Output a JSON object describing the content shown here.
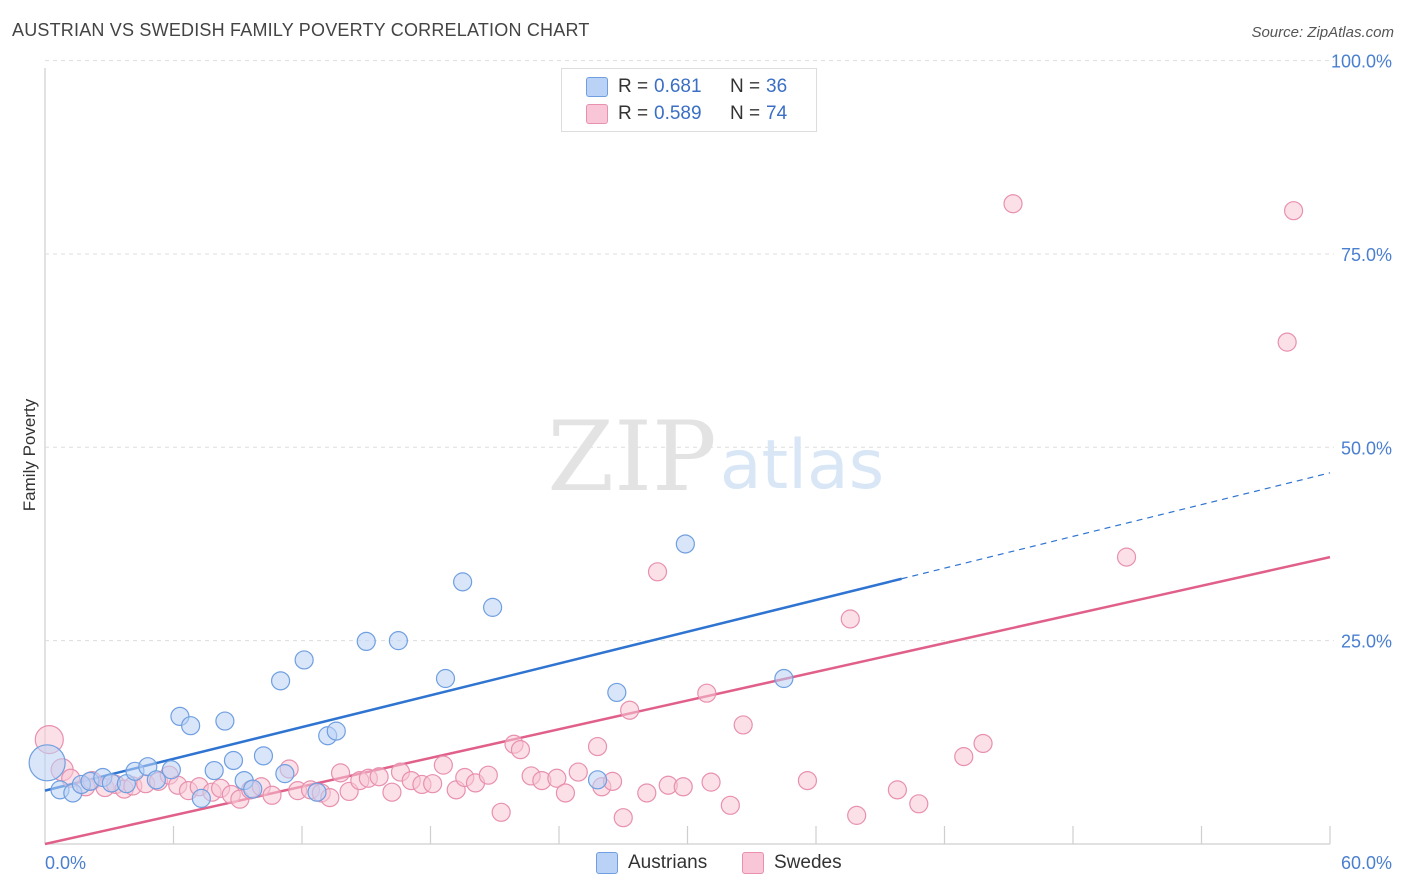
{
  "title": "AUSTRIAN VS SWEDISH FAMILY POVERTY CORRELATION CHART",
  "source": "Source: ZipAtlas.com",
  "watermark": {
    "zip": "ZIP",
    "atlas": "atlas"
  },
  "colors": {
    "austrians_fill": "#b9d2f5",
    "austrians_stroke": "#6f9fe0",
    "austrians_line": "#2f74d0",
    "swedes_fill": "#f8c6d6",
    "swedes_stroke": "#e890ae",
    "swedes_line": "#e0608a",
    "tick_label": "#4a7fd0",
    "grid": "#dddddd"
  },
  "legend_top": [
    {
      "r_label": "R =",
      "r_value": "0.681",
      "n_label": "N =",
      "n_value": "36"
    },
    {
      "r_label": "R =",
      "r_value": "0.589",
      "n_label": "N =",
      "n_value": "74"
    }
  ],
  "legend_bottom": [
    "Austrians",
    "Swedes"
  ],
  "chart_data": {
    "type": "scatter",
    "title": "AUSTRIAN VS SWEDISH FAMILY POVERTY CORRELATION CHART",
    "xlabel": "",
    "ylabel": "Family Poverty",
    "xlim": [
      0,
      60
    ],
    "ylim": [
      -1.3,
      97.5
    ],
    "x_tick_labels": [
      "0.0%",
      "60.0%"
    ],
    "y_ticks": [
      25,
      50,
      75,
      100
    ],
    "y_tick_labels": [
      "25.0%",
      "50.0%",
      "75.0%",
      "100.0%"
    ],
    "grid": true,
    "legend_position": "top-center",
    "series": [
      {
        "name": "Austrians",
        "r": 0.681,
        "n": 36,
        "trend": {
          "x": [
            0,
            40
          ],
          "y": [
            5.6,
            33.0
          ],
          "dashed_to": [
            60,
            46.7
          ]
        },
        "points": [
          [
            0.1,
            9.2,
            18
          ],
          [
            0.7,
            5.7,
            9
          ],
          [
            1.3,
            5.3,
            9
          ],
          [
            1.7,
            6.4,
            9
          ],
          [
            2.1,
            6.8,
            9
          ],
          [
            2.7,
            7.3,
            9
          ],
          [
            3.1,
            6.6,
            9
          ],
          [
            3.8,
            6.5,
            9
          ],
          [
            4.2,
            8.1,
            9
          ],
          [
            4.8,
            8.7,
            9
          ],
          [
            5.2,
            7.0,
            9
          ],
          [
            5.9,
            8.3,
            9
          ],
          [
            6.3,
            15.2,
            9
          ],
          [
            6.8,
            14.0,
            9
          ],
          [
            7.3,
            4.6,
            9
          ],
          [
            7.9,
            8.2,
            9
          ],
          [
            8.4,
            14.6,
            9
          ],
          [
            8.8,
            9.5,
            9
          ],
          [
            9.3,
            6.9,
            9
          ],
          [
            9.7,
            5.8,
            9
          ],
          [
            10.2,
            10.1,
            9
          ],
          [
            11.0,
            19.8,
            9
          ],
          [
            11.2,
            7.8,
            9
          ],
          [
            12.1,
            22.5,
            9
          ],
          [
            12.7,
            5.4,
            9
          ],
          [
            13.2,
            12.7,
            9
          ],
          [
            13.6,
            13.3,
            9
          ],
          [
            15.0,
            24.9,
            9
          ],
          [
            16.5,
            25.0,
            9
          ],
          [
            18.7,
            20.1,
            9
          ],
          [
            19.5,
            32.6,
            9
          ],
          [
            20.9,
            29.3,
            9
          ],
          [
            25.8,
            7.0,
            9
          ],
          [
            26.7,
            18.3,
            9
          ],
          [
            29.9,
            37.5,
            9
          ],
          [
            34.5,
            20.1,
            9
          ]
        ]
      },
      {
        "name": "Swedes",
        "r": 0.589,
        "n": 74,
        "trend": {
          "x": [
            0,
            60
          ],
          "y": [
            -1.3,
            35.8
          ]
        },
        "points": [
          [
            0.2,
            12.2,
            14
          ],
          [
            0.8,
            8.3,
            11
          ],
          [
            1.2,
            7.2,
            9
          ],
          [
            1.9,
            6.1,
            9
          ],
          [
            2.2,
            6.9,
            9
          ],
          [
            2.8,
            6.0,
            9
          ],
          [
            3.3,
            6.4,
            9
          ],
          [
            3.7,
            5.8,
            9
          ],
          [
            4.1,
            6.2,
            9
          ],
          [
            4.7,
            6.5,
            9
          ],
          [
            5.3,
            6.8,
            9
          ],
          [
            5.8,
            7.6,
            9
          ],
          [
            6.2,
            6.3,
            9
          ],
          [
            6.7,
            5.6,
            9
          ],
          [
            7.2,
            6.1,
            9
          ],
          [
            7.8,
            5.4,
            9
          ],
          [
            8.2,
            5.9,
            9
          ],
          [
            8.7,
            5.1,
            9
          ],
          [
            9.1,
            4.5,
            9
          ],
          [
            9.6,
            5.7,
            9
          ],
          [
            10.1,
            6.1,
            9
          ],
          [
            10.6,
            5.0,
            9
          ],
          [
            11.4,
            8.4,
            9
          ],
          [
            11.8,
            5.6,
            9
          ],
          [
            12.4,
            5.7,
            9
          ],
          [
            12.9,
            5.3,
            9
          ],
          [
            13.3,
            4.7,
            9
          ],
          [
            13.8,
            7.9,
            9
          ],
          [
            14.2,
            5.5,
            9
          ],
          [
            14.7,
            6.9,
            9
          ],
          [
            15.1,
            7.2,
            9
          ],
          [
            15.6,
            7.4,
            9
          ],
          [
            16.2,
            5.4,
            9
          ],
          [
            16.6,
            8.0,
            9
          ],
          [
            17.1,
            6.9,
            9
          ],
          [
            17.6,
            6.4,
            9
          ],
          [
            18.1,
            6.5,
            9
          ],
          [
            18.6,
            8.9,
            9
          ],
          [
            19.2,
            5.7,
            9
          ],
          [
            19.6,
            7.3,
            9
          ],
          [
            20.1,
            6.6,
            9
          ],
          [
            20.7,
            7.6,
            9
          ],
          [
            21.3,
            2.8,
            9
          ],
          [
            21.9,
            11.6,
            9
          ],
          [
            22.2,
            10.9,
            9
          ],
          [
            22.7,
            7.5,
            9
          ],
          [
            23.2,
            6.9,
            9
          ],
          [
            23.9,
            7.2,
            9
          ],
          [
            24.3,
            5.3,
            9
          ],
          [
            24.9,
            8.0,
            9
          ],
          [
            25.8,
            11.3,
            9
          ],
          [
            26.0,
            6.1,
            9
          ],
          [
            26.5,
            6.8,
            9
          ],
          [
            27.0,
            2.1,
            9
          ],
          [
            27.3,
            16.0,
            9
          ],
          [
            28.1,
            5.3,
            9
          ],
          [
            28.6,
            33.9,
            9
          ],
          [
            29.1,
            6.3,
            9
          ],
          [
            29.8,
            6.1,
            9
          ],
          [
            30.9,
            18.2,
            9
          ],
          [
            31.1,
            6.7,
            9
          ],
          [
            32.0,
            3.7,
            9
          ],
          [
            32.6,
            14.1,
            9
          ],
          [
            35.6,
            6.9,
            9
          ],
          [
            37.6,
            27.8,
            9
          ],
          [
            37.9,
            2.4,
            9
          ],
          [
            39.8,
            5.7,
            9
          ],
          [
            40.8,
            3.9,
            9
          ],
          [
            42.9,
            10.0,
            9
          ],
          [
            43.8,
            11.7,
            9
          ],
          [
            45.2,
            81.5,
            9
          ],
          [
            50.5,
            35.8,
            9
          ],
          [
            58.0,
            63.6,
            9
          ],
          [
            58.3,
            80.6,
            9
          ]
        ]
      }
    ]
  }
}
